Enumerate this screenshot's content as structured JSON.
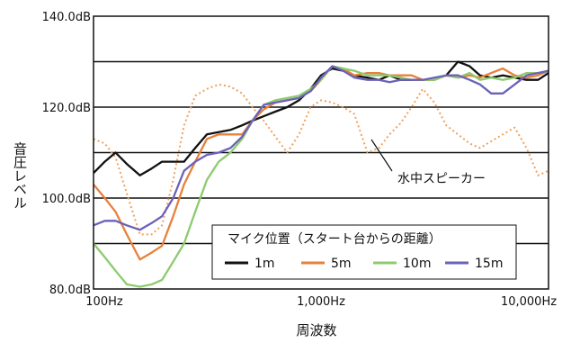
{
  "chart_data": {
    "type": "line",
    "x_scale": "log",
    "xlim": [
      100,
      10000
    ],
    "ylim": [
      80,
      140
    ],
    "y_ticks": [
      "140.0dB",
      "120.0dB",
      "100.0dB",
      "80.0dB"
    ],
    "x_ticks": [
      "100Hz",
      "1,000Hz",
      "10,000Hz"
    ],
    "xlabel": "周波数",
    "ylabel": "音圧レベル",
    "grid": "horizontal",
    "legend": {
      "title": "マイク位置（スタート台からの距離）",
      "placement": "bottom-right"
    },
    "annotation": "水中スピーカー",
    "series": [
      {
        "name": "1m",
        "color": "#111111",
        "dash": "solid",
        "x": [
          100,
          112,
          125,
          140,
          160,
          180,
          200,
          224,
          250,
          280,
          315,
          355,
          400,
          450,
          500,
          560,
          630,
          710,
          800,
          900,
          1000,
          1120,
          1250,
          1400,
          1600,
          1800,
          2000,
          2240,
          2500,
          2800,
          3150,
          3550,
          4000,
          4500,
          5000,
          5600,
          6300,
          7100,
          8000,
          9000,
          10000
        ],
        "values": [
          105.5,
          108,
          110,
          107.5,
          105,
          106.5,
          108,
          108,
          108,
          111,
          114,
          114.5,
          115,
          116,
          117,
          118,
          119,
          120,
          121.5,
          124,
          127,
          128.5,
          128,
          127,
          126.5,
          126,
          127,
          126,
          126,
          126,
          126,
          127,
          130,
          129,
          127,
          126.5,
          127,
          126.5,
          126,
          126,
          127.5
        ]
      },
      {
        "name": "5m",
        "color": "#e8803a",
        "dash": "solid",
        "x": [
          100,
          112,
          125,
          140,
          160,
          180,
          200,
          224,
          250,
          280,
          315,
          355,
          400,
          450,
          500,
          560,
          630,
          710,
          800,
          900,
          1000,
          1120,
          1250,
          1400,
          1600,
          1800,
          2000,
          2240,
          2500,
          2800,
          3150,
          3550,
          4000,
          4500,
          5000,
          5600,
          6300,
          7100,
          8000,
          9000,
          10000
        ],
        "values": [
          103,
          100,
          97,
          92,
          86.5,
          88,
          89.5,
          96,
          103,
          108,
          113,
          114,
          114,
          114,
          117,
          119.5,
          121,
          121.5,
          122,
          123.5,
          126,
          129,
          128.5,
          127,
          127.5,
          127.5,
          127,
          127,
          127,
          126,
          126,
          127,
          126.5,
          127,
          126.5,
          127.5,
          128.5,
          127,
          126.5,
          127,
          128
        ]
      },
      {
        "name": "10m",
        "color": "#8ccb6e",
        "dash": "solid",
        "x": [
          100,
          112,
          125,
          140,
          160,
          180,
          200,
          224,
          250,
          280,
          315,
          355,
          400,
          450,
          500,
          560,
          630,
          710,
          800,
          900,
          1000,
          1120,
          1250,
          1400,
          1600,
          1800,
          2000,
          2240,
          2500,
          2800,
          3150,
          3550,
          4000,
          4500,
          5000,
          5600,
          6300,
          7100,
          8000,
          9000,
          10000
        ],
        "values": [
          90,
          87,
          84,
          81,
          80.5,
          81,
          82,
          86,
          90,
          97,
          104,
          108,
          110,
          113,
          117,
          120.5,
          121.5,
          122,
          122.5,
          124,
          126,
          129,
          128.5,
          128,
          127,
          127,
          127,
          126.5,
          126,
          126,
          126,
          127,
          126.5,
          127.5,
          126,
          126.5,
          126,
          126.5,
          127.5,
          127.5,
          128
        ]
      },
      {
        "name": "15m",
        "color": "#6a62b8",
        "dash": "solid",
        "x": [
          100,
          112,
          125,
          140,
          160,
          180,
          200,
          224,
          250,
          280,
          315,
          355,
          400,
          450,
          500,
          560,
          630,
          710,
          800,
          900,
          1000,
          1120,
          1250,
          1400,
          1600,
          1800,
          2000,
          2240,
          2500,
          2800,
          3150,
          3550,
          4000,
          4500,
          5000,
          5600,
          6300,
          7100,
          8000,
          9000,
          10000
        ],
        "values": [
          94,
          95,
          95,
          94,
          93,
          94.5,
          96,
          100,
          106,
          108,
          109.5,
          110,
          111,
          113.5,
          117,
          120.5,
          121,
          121.5,
          122,
          123.5,
          126.5,
          129,
          128,
          126.5,
          126,
          126,
          125.5,
          126,
          126,
          126,
          126.5,
          127,
          127,
          126,
          125,
          123,
          123,
          125,
          127,
          127.5,
          128
        ]
      },
      {
        "name": "水中スピーカー",
        "color": "#f0a25c",
        "dash": "dotted",
        "x": [
          100,
          112,
          125,
          140,
          160,
          180,
          200,
          224,
          250,
          280,
          315,
          355,
          400,
          450,
          500,
          560,
          630,
          710,
          800,
          900,
          1000,
          1120,
          1250,
          1400,
          1600,
          1800,
          2000,
          2240,
          2500,
          2800,
          3150,
          3550,
          4000,
          4500,
          5000,
          5600,
          6300,
          7100,
          8000,
          9000,
          10000
        ],
        "values": [
          113,
          112,
          109,
          101,
          92,
          92,
          94,
          104,
          116,
          122.5,
          124,
          125,
          124.5,
          123,
          120,
          117,
          113.5,
          110,
          114,
          120,
          121.5,
          121,
          120,
          118.5,
          110,
          111,
          114,
          116.5,
          120,
          124,
          121,
          116,
          114,
          112,
          111,
          112.5,
          114,
          115.5,
          111,
          105,
          106
        ]
      }
    ]
  }
}
